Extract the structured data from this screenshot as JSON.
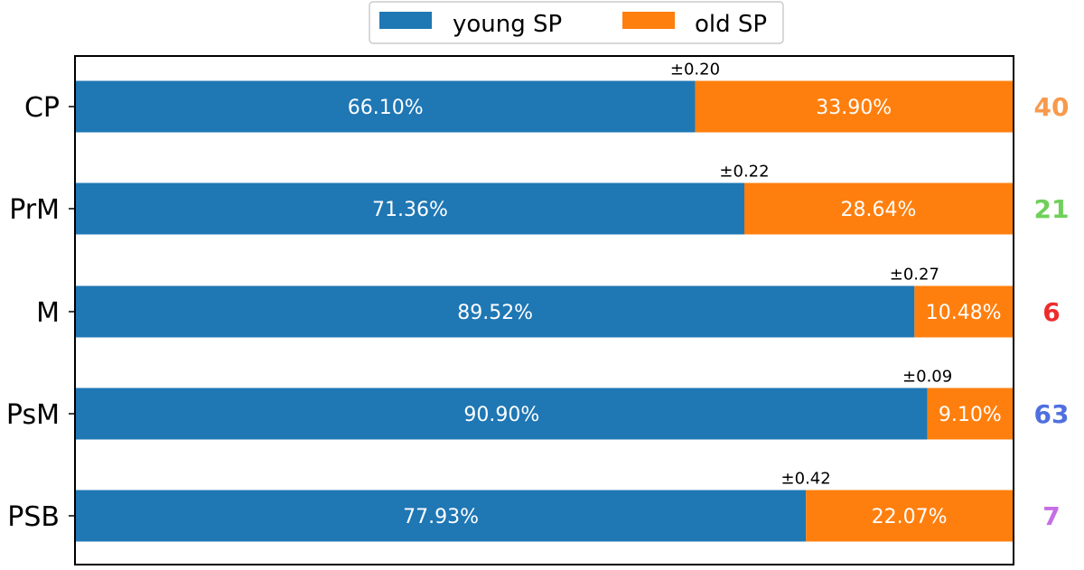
{
  "chart_data": {
    "type": "bar",
    "orientation": "horizontal",
    "stacked": true,
    "categories": [
      "CP",
      "PrM",
      "M",
      "PsM",
      "PSB"
    ],
    "series": [
      {
        "name": "young SP",
        "color": "#1f77b4",
        "values": [
          66.1,
          71.36,
          89.52,
          90.9,
          77.93
        ]
      },
      {
        "name": "old SP",
        "color": "#ff7f0e",
        "values": [
          33.9,
          28.64,
          10.48,
          9.1,
          22.07
        ]
      }
    ],
    "value_labels": {
      "young SP": [
        "66.10%",
        "71.36%",
        "89.52%",
        "90.90%",
        "77.93%"
      ],
      "old SP": [
        "33.90%",
        "28.64%",
        "10.48%",
        "9.10%",
        "22.07%"
      ]
    },
    "error_labels": [
      "±0.20",
      "±0.22",
      "±0.27",
      "±0.09",
      "±0.42"
    ],
    "counts": [
      {
        "label": "40",
        "color": "#f79a4e"
      },
      {
        "label": "21",
        "color": "#6fd05a"
      },
      {
        "label": "6",
        "color": "#ee2b2b"
      },
      {
        "label": "63",
        "color": "#4f6fe0"
      },
      {
        "label": "7",
        "color": "#c66ee4"
      }
    ],
    "xlim": [
      0,
      100
    ],
    "title": "",
    "xlabel": "",
    "ylabel": "",
    "grid": false,
    "legend_position": "top-center"
  }
}
